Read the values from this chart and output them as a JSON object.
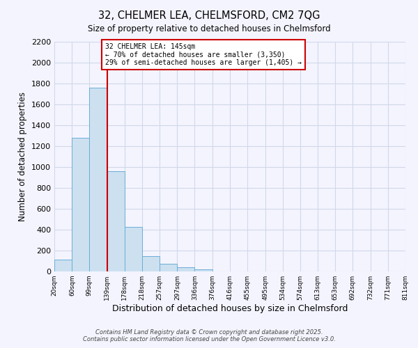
{
  "title": "32, CHELMER LEA, CHELMSFORD, CM2 7QG",
  "subtitle": "Size of property relative to detached houses in Chelmsford",
  "xlabel": "Distribution of detached houses by size in Chelmsford",
  "ylabel": "Number of detached properties",
  "bar_edges": [
    20,
    60,
    99,
    139,
    178,
    218,
    257,
    297,
    336,
    376,
    416,
    455,
    495,
    534,
    574,
    613,
    653,
    692,
    732,
    771,
    811
  ],
  "bar_values": [
    115,
    1280,
    1760,
    960,
    430,
    150,
    75,
    38,
    18,
    0,
    0,
    0,
    0,
    0,
    0,
    0,
    0,
    0,
    0,
    0
  ],
  "bar_color": "#cce0f0",
  "bar_edge_color": "#6aaed6",
  "property_line_x": 139,
  "property_line_color": "#cc0000",
  "ylim": [
    0,
    2200
  ],
  "yticks": [
    0,
    200,
    400,
    600,
    800,
    1000,
    1200,
    1400,
    1600,
    1800,
    2000,
    2200
  ],
  "annotation_title": "32 CHELMER LEA: 145sqm",
  "annotation_line1": "← 70% of detached houses are smaller (3,350)",
  "annotation_line2": "29% of semi-detached houses are larger (1,405) →",
  "annotation_box_color": "#cc0000",
  "grid_color": "#d0d8e8",
  "bg_color": "#f4f4ff",
  "footer1": "Contains HM Land Registry data © Crown copyright and database right 2025.",
  "footer2": "Contains public sector information licensed under the Open Government Licence v3.0."
}
